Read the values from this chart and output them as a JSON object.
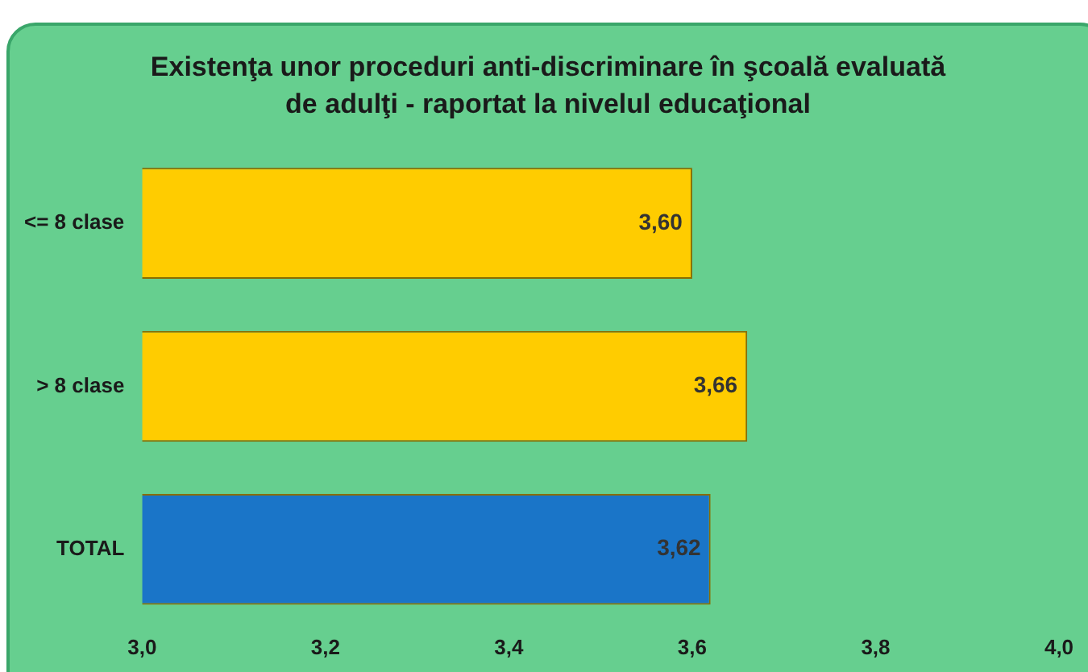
{
  "chart_data": {
    "type": "bar",
    "orientation": "horizontal",
    "title": "Existenţa unor proceduri anti-discriminare în şcoală evaluată de adulţi - raportat la nivelul educaţional",
    "categories": [
      "<= 8 clase",
      "> 8 clase",
      "TOTAL"
    ],
    "values": [
      3.6,
      3.66,
      3.62
    ],
    "colors": [
      "#ffcc00",
      "#ffcc00",
      "#1a75c8"
    ],
    "value_labels": [
      "3,60",
      "3,66",
      "3,62"
    ],
    "xlim": [
      3.0,
      4.0
    ],
    "xticks": [
      {
        "value": 3.0,
        "label": "3,0"
      },
      {
        "value": 3.2,
        "label": "3,2"
      },
      {
        "value": 3.4,
        "label": "3,4"
      },
      {
        "value": 3.6,
        "label": "3,6"
      },
      {
        "value": 3.8,
        "label": "3,8"
      },
      {
        "value": 4.0,
        "label": "4,0"
      }
    ],
    "grid": false,
    "legend": false
  }
}
